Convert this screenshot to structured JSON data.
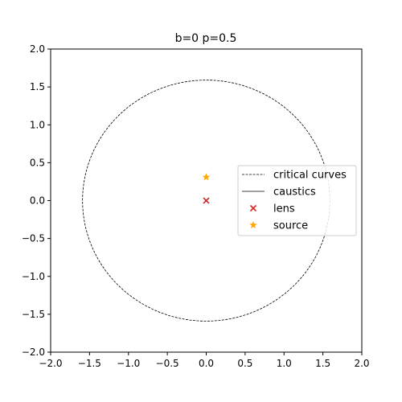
{
  "chart_data": {
    "type": "scatter",
    "title": "b=0 p=0.5",
    "xlabel": "",
    "ylabel": "",
    "xlim": [
      -2.0,
      2.0
    ],
    "ylim": [
      -2.0,
      2.0
    ],
    "xticks": [
      -2.0,
      -1.5,
      -1.0,
      -0.5,
      0.0,
      0.5,
      1.0,
      1.5,
      2.0
    ],
    "yticks": [
      -2.0,
      -1.5,
      -1.0,
      -0.5,
      0.0,
      0.5,
      1.0,
      1.5,
      2.0
    ],
    "xtick_labels": [
      "−2.0",
      "−1.5",
      "−1.0",
      "−0.5",
      "0.0",
      "0.5",
      "1.0",
      "1.5",
      "2.0"
    ],
    "ytick_labels": [
      "−2.0",
      "−1.5",
      "−1.0",
      "−0.5",
      "0.0",
      "0.5",
      "1.0",
      "1.5",
      "2.0"
    ],
    "grid": false,
    "legend_position": "right",
    "series": [
      {
        "name": "critical curves",
        "kind": "circle-line",
        "style": "dashed",
        "color": "#000000",
        "center": [
          0.0,
          0.0
        ],
        "radius": 1.59
      },
      {
        "name": "caustics",
        "kind": "point-line",
        "style": "solid",
        "color": "#000000",
        "x": [
          0.0
        ],
        "y": [
          0.0
        ]
      },
      {
        "name": "lens",
        "kind": "marker",
        "marker": "x",
        "color": "#d62728",
        "x": [
          0.0
        ],
        "y": [
          0.0
        ]
      },
      {
        "name": "source",
        "kind": "marker",
        "marker": "star",
        "color": "#ffa500",
        "x": [
          0.0
        ],
        "y": [
          0.31
        ]
      }
    ]
  }
}
